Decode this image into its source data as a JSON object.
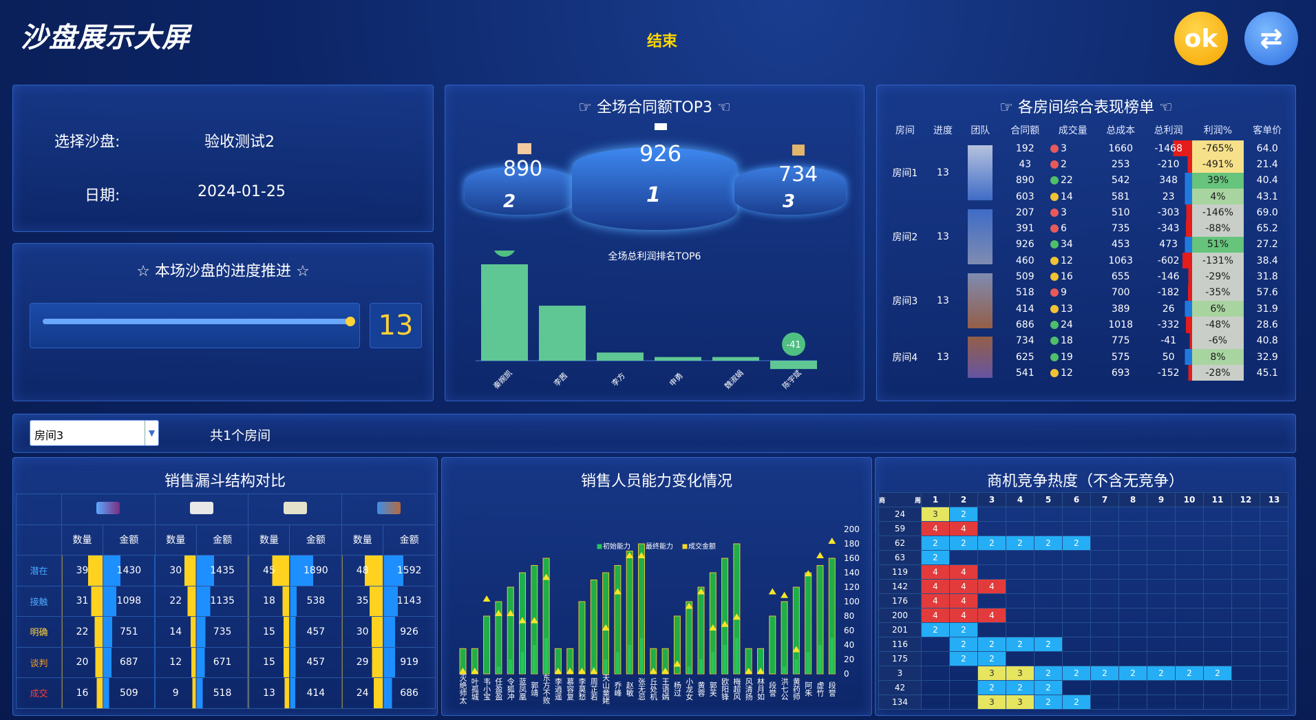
{
  "header": {
    "title": "沙盘展示大屏",
    "end_label": "结束",
    "ok_label": "ok",
    "refresh_icon": "refresh-icon"
  },
  "info": {
    "select_label": "选择沙盘:",
    "select_value": "验收测试2",
    "date_label": "日期:",
    "date_value": "2024-01-25"
  },
  "progress": {
    "title": "☆ 本场沙盘的进度推进 ☆",
    "value": "13",
    "fraction": 1.0
  },
  "top3": {
    "title": "☞ 全场合同额TOP3 ☜",
    "first": "926",
    "second": "890",
    "third": "734",
    "rank1": "1",
    "rank2": "2",
    "rank3": "3"
  },
  "profit_chart": {
    "title": "全场总利润排名TOP6",
    "type": "bar",
    "values": [
      473,
      270,
      40,
      18,
      18,
      -41
    ],
    "categories": [
      "秦婉凯",
      "李茜",
      "李方",
      "申勇",
      "魏淑娟",
      "陈宇斌"
    ],
    "labels": {
      "max": "473",
      "min": "-41"
    },
    "color": "#5fc794"
  },
  "ranking": {
    "title": "☞ 各房间综合表现榜单 ☜",
    "headers": [
      "房间",
      "进度",
      "团队",
      "合同额",
      "成交量",
      "总成本",
      "总利润",
      "利润%",
      "客单价"
    ],
    "rooms": [
      {
        "name": "房间1",
        "progress": "13"
      },
      {
        "name": "房间2",
        "progress": "13"
      },
      {
        "name": "房间3",
        "progress": "13"
      },
      {
        "name": "房间4",
        "progress": "13"
      }
    ],
    "rows": [
      {
        "contract": "192",
        "dot": "#e85a5a",
        "deals": "3",
        "cost": "1660",
        "profit": "-1468",
        "pct": "-765%",
        "price": "64.0"
      },
      {
        "contract": "43",
        "dot": "#e85a5a",
        "deals": "2",
        "cost": "253",
        "profit": "-210",
        "pct": "-491%",
        "price": "21.4"
      },
      {
        "contract": "890",
        "dot": "#4fbf6a",
        "deals": "22",
        "cost": "542",
        "profit": "348",
        "pct": "39%",
        "price": "40.4"
      },
      {
        "contract": "603",
        "dot": "#f2c232",
        "deals": "14",
        "cost": "581",
        "profit": "23",
        "pct": "4%",
        "price": "43.1"
      },
      {
        "contract": "207",
        "dot": "#e85a5a",
        "deals": "3",
        "cost": "510",
        "profit": "-303",
        "pct": "-146%",
        "price": "69.0"
      },
      {
        "contract": "391",
        "dot": "#e85a5a",
        "deals": "6",
        "cost": "735",
        "profit": "-343",
        "pct": "-88%",
        "price": "65.2"
      },
      {
        "contract": "926",
        "dot": "#4fbf6a",
        "deals": "34",
        "cost": "453",
        "profit": "473",
        "pct": "51%",
        "price": "27.2"
      },
      {
        "contract": "460",
        "dot": "#f2c232",
        "deals": "12",
        "cost": "1063",
        "profit": "-602",
        "pct": "-131%",
        "price": "38.4"
      },
      {
        "contract": "509",
        "dot": "#f2c232",
        "deals": "16",
        "cost": "655",
        "profit": "-146",
        "pct": "-29%",
        "price": "31.8"
      },
      {
        "contract": "518",
        "dot": "#e85a5a",
        "deals": "9",
        "cost": "700",
        "profit": "-182",
        "pct": "-35%",
        "price": "57.6"
      },
      {
        "contract": "414",
        "dot": "#f2c232",
        "deals": "13",
        "cost": "389",
        "profit": "26",
        "pct": "6%",
        "price": "31.9"
      },
      {
        "contract": "686",
        "dot": "#4fbf6a",
        "deals": "24",
        "cost": "1018",
        "profit": "-332",
        "pct": "-48%",
        "price": "28.6"
      },
      {
        "contract": "734",
        "dot": "#4fbf6a",
        "deals": "18",
        "cost": "775",
        "profit": "-41",
        "pct": "-6%",
        "price": "40.8"
      },
      {
        "contract": "625",
        "dot": "#4fbf6a",
        "deals": "19",
        "cost": "575",
        "profit": "50",
        "pct": "8%",
        "price": "32.9"
      },
      {
        "contract": "541",
        "dot": "#f2c232",
        "deals": "12",
        "cost": "693",
        "profit": "-152",
        "pct": "-28%",
        "price": "45.1"
      }
    ]
  },
  "room_select": {
    "value": "房间3",
    "count_text": "共1个房间"
  },
  "funnel": {
    "title": "销售漏斗结构对比",
    "col_qty": "数量",
    "col_amt": "金额",
    "stages": [
      {
        "name": "潜在",
        "color": "#4aa8ff"
      },
      {
        "name": "接触",
        "color": "#4aa8ff"
      },
      {
        "name": "明确",
        "color": "#ffd23a"
      },
      {
        "name": "谈判",
        "color": "#ff9f1a"
      },
      {
        "name": "成交",
        "color": "#ff3b3b"
      }
    ],
    "teams": [
      {
        "qty": [
          "39",
          "31",
          "22",
          "20",
          "16"
        ],
        "amt": [
          "1430",
          "1098",
          "751",
          "687",
          "509"
        ]
      },
      {
        "qty": [
          "30",
          "22",
          "14",
          "12",
          "9"
        ],
        "amt": [
          "1435",
          "1135",
          "735",
          "671",
          "518"
        ]
      },
      {
        "qty": [
          "45",
          "18",
          "15",
          "15",
          "13"
        ],
        "amt": [
          "1890",
          "538",
          "457",
          "457",
          "414"
        ]
      },
      {
        "qty": [
          "48",
          "35",
          "30",
          "29",
          "24"
        ],
        "amt": [
          "1592",
          "1143",
          "926",
          "919",
          "686"
        ]
      }
    ]
  },
  "ability": {
    "title": "销售人员能力变化情况",
    "legend": [
      "初始能力",
      "最终能力",
      "成交金额"
    ],
    "names": [
      "灭绝师太",
      "叶孤城",
      "韦小宝",
      "任盈盈",
      "令狐冲",
      "蓝凤凰",
      "郭靖",
      "东方不败",
      "李逍遥",
      "慕容复",
      "李莫愁",
      "周芷若",
      "天山童姥",
      "乔峰",
      "赵敏",
      "张无忌",
      "丘处机",
      "王语嫣",
      "杨过",
      "小龙女",
      "黄蓉",
      "郭芙",
      "欧阳锋",
      "梅超风",
      "风清扬",
      "林月如",
      "段誉",
      "洪七公",
      "黄药师",
      "阿朱",
      "虚竹",
      "段誉"
    ],
    "yticks": [
      "0",
      "20",
      "40",
      "60",
      "80",
      "100",
      "120",
      "140",
      "160",
      "180",
      "200"
    ]
  },
  "heat": {
    "title": "商机竞争热度（不含无竞争）",
    "corner_a": "商",
    "corner_b": "周",
    "cols": [
      "1",
      "2",
      "3",
      "4",
      "5",
      "6",
      "7",
      "8",
      "9",
      "10",
      "11",
      "12",
      "13"
    ],
    "rows": [
      {
        "id": "24",
        "cells": [
          "3",
          "2"
        ]
      },
      {
        "id": "59",
        "cells": [
          "4",
          "4"
        ]
      },
      {
        "id": "62",
        "cells": [
          "2",
          "2",
          "2",
          "2",
          "2",
          "2"
        ]
      },
      {
        "id": "63",
        "cells": [
          "2"
        ]
      },
      {
        "id": "119",
        "cells": [
          "4",
          "4"
        ]
      },
      {
        "id": "142",
        "cells": [
          "4",
          "4",
          "4"
        ]
      },
      {
        "id": "176",
        "cells": [
          "4",
          "4"
        ]
      },
      {
        "id": "200",
        "cells": [
          "4",
          "4",
          "4"
        ]
      },
      {
        "id": "201",
        "cells": [
          "2",
          "2"
        ]
      },
      {
        "id": "116",
        "cells": [
          "",
          "2",
          "2",
          "2",
          "2"
        ]
      },
      {
        "id": "175",
        "cells": [
          "",
          "2",
          "2"
        ]
      },
      {
        "id": "3",
        "cells": [
          "",
          "",
          "3",
          "3",
          "2",
          "2",
          "2",
          "2",
          "2",
          "2",
          "2"
        ]
      },
      {
        "id": "42",
        "cells": [
          "",
          "",
          "2",
          "2",
          "2"
        ]
      },
      {
        "id": "134",
        "cells": [
          "",
          "",
          "3",
          "3",
          "2",
          "2"
        ]
      }
    ]
  }
}
